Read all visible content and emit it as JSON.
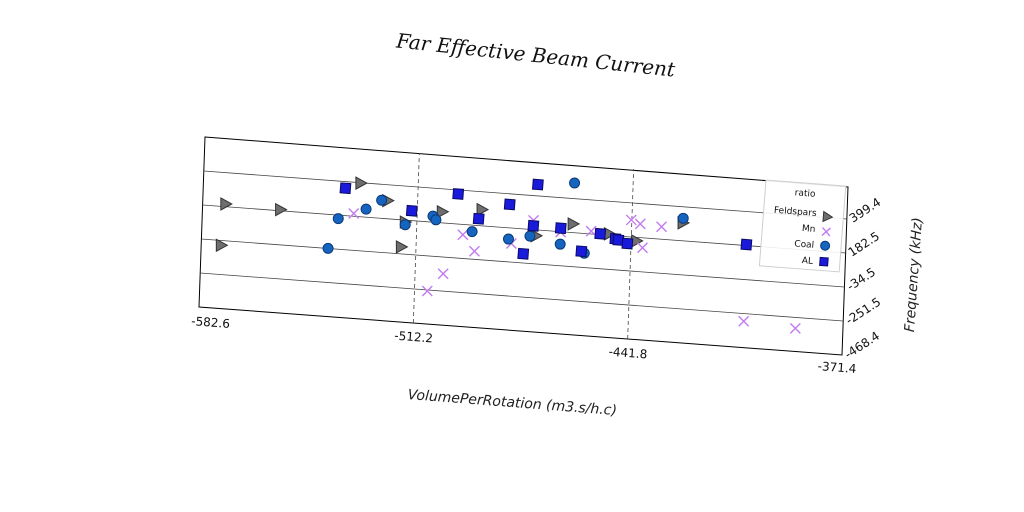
{
  "chart_data": {
    "type": "scatter",
    "title": "Far Effective Beam Current",
    "xlabel": "VolumePerRotation (m3.s/h.c)",
    "ylabel": "Frequency (kHz)",
    "xlim": [
      -582.6,
      -371.4
    ],
    "ylim": [
      -468.4,
      616.3
    ],
    "xticks": [
      "-582.6",
      "-512.2",
      "-441.8",
      "-371.4"
    ],
    "yticks": [
      "-468.4",
      "-251.5",
      "-34.5",
      "182.5",
      "399.4"
    ],
    "grid": true,
    "legend": {
      "title": "ratio",
      "position": "right"
    },
    "series": [
      {
        "name": "Feldspars",
        "marker": "triangle-right",
        "color": "#6e6e6e",
        "points": [
          [
            -575,
            200
          ],
          [
            -557,
            190
          ],
          [
            -531,
            397
          ],
          [
            -522,
            298
          ],
          [
            -516,
            170
          ],
          [
            -504,
            253
          ],
          [
            -491,
            286
          ],
          [
            -461,
            238
          ],
          [
            -449,
            192
          ],
          [
            -425,
            297
          ],
          [
            -440,
            160
          ],
          [
            -473,
            145
          ],
          [
            -517,
            10
          ],
          [
            -576,
            -65
          ]
        ]
      },
      {
        "name": "Mn",
        "marker": "x",
        "color": "#c27bf0",
        "points": [
          [
            -533,
            200
          ],
          [
            -497,
            117
          ],
          [
            -493,
            17
          ],
          [
            -481,
            84
          ],
          [
            -474,
            242
          ],
          [
            -465,
            180
          ],
          [
            -455,
            201
          ],
          [
            -442,
            291
          ],
          [
            -439,
            270
          ],
          [
            -438,
            119
          ],
          [
            -432,
            262
          ],
          [
            -404,
            -300
          ],
          [
            -387,
            -321
          ],
          [
            -503,
            -141
          ],
          [
            -508,
            -258
          ]
        ]
      },
      {
        "name": "Coal",
        "marker": "circle",
        "color": "#1565c0",
        "points": [
          [
            -541,
            -34
          ],
          [
            -538,
            160
          ],
          [
            -529,
            234
          ],
          [
            -524,
            298
          ],
          [
            -516,
            153
          ],
          [
            -507,
            221
          ],
          [
            -506,
            199
          ],
          [
            -494,
            141
          ],
          [
            -482,
            111
          ],
          [
            -475,
            140
          ],
          [
            -465,
            103
          ],
          [
            -461,
            499
          ],
          [
            -457,
            57
          ],
          [
            -425,
            326
          ]
        ]
      },
      {
        "name": "AL",
        "marker": "square",
        "color": "#1a1adb",
        "points": [
          [
            -536,
            357
          ],
          [
            -514,
            245
          ],
          [
            -499,
            374
          ],
          [
            -492,
            226
          ],
          [
            -482,
            332
          ],
          [
            -477,
            24
          ],
          [
            -474,
            207
          ],
          [
            -473,
            472
          ],
          [
            -465,
            205
          ],
          [
            -458,
            68
          ],
          [
            -452,
            188
          ],
          [
            -447,
            163
          ],
          [
            -446,
            157
          ],
          [
            -443,
            139
          ],
          [
            -404,
            189
          ]
        ]
      }
    ]
  }
}
